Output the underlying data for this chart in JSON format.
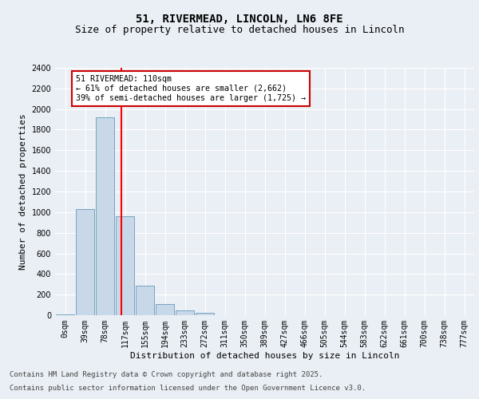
{
  "title": "51, RIVERMEAD, LINCOLN, LN6 8FE",
  "subtitle": "Size of property relative to detached houses in Lincoln",
  "xlabel": "Distribution of detached houses by size in Lincoln",
  "ylabel": "Number of detached properties",
  "bar_labels": [
    "0sqm",
    "39sqm",
    "78sqm",
    "117sqm",
    "155sqm",
    "194sqm",
    "233sqm",
    "272sqm",
    "311sqm",
    "350sqm",
    "389sqm",
    "427sqm",
    "466sqm",
    "505sqm",
    "544sqm",
    "583sqm",
    "622sqm",
    "661sqm",
    "700sqm",
    "738sqm",
    "777sqm"
  ],
  "bar_values": [
    5,
    1030,
    1920,
    960,
    290,
    110,
    45,
    25,
    0,
    0,
    0,
    0,
    0,
    0,
    0,
    0,
    0,
    0,
    0,
    0,
    0
  ],
  "bar_color": "#c8d8e8",
  "bar_edgecolor": "#6699bb",
  "ylim": [
    0,
    2400
  ],
  "yticks": [
    0,
    200,
    400,
    600,
    800,
    1000,
    1200,
    1400,
    1600,
    1800,
    2000,
    2200,
    2400
  ],
  "red_line_x": 2.82,
  "annotation_text": "51 RIVERMEAD: 110sqm\n← 61% of detached houses are smaller (2,662)\n39% of semi-detached houses are larger (1,725) →",
  "annotation_box_color": "#ffffff",
  "annotation_box_edgecolor": "#cc0000",
  "footer_line1": "Contains HM Land Registry data © Crown copyright and database right 2025.",
  "footer_line2": "Contains public sector information licensed under the Open Government Licence v3.0.",
  "bg_color": "#eaeff5",
  "plot_bg_color": "#eaeff5",
  "grid_color": "#ffffff",
  "title_fontsize": 10,
  "subtitle_fontsize": 9,
  "axis_label_fontsize": 8,
  "tick_fontsize": 7,
  "footer_fontsize": 6.5
}
